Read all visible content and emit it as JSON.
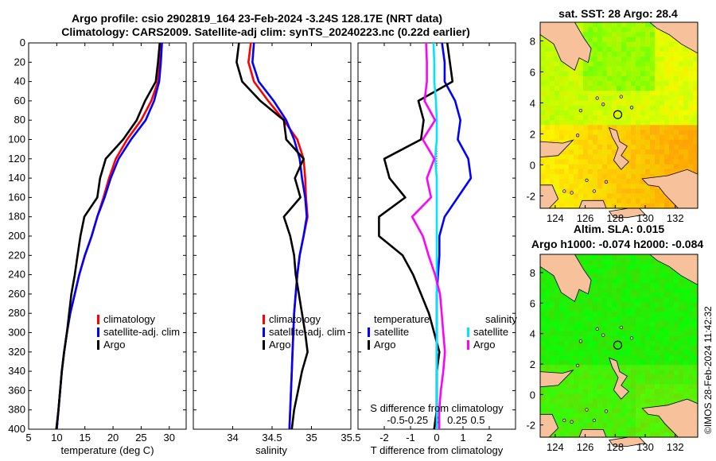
{
  "title": {
    "line1": "Argo profile: csio 2902819_164 23-Feb-2024 -3.24S 128.17E (NRT data)",
    "line2": "Climatology: CARS2009. Satellite-adj clim: synTS_20240223.nc (0.22d earlier)"
  },
  "colors": {
    "clim": "#ff0000",
    "sat": "#0000ff",
    "argo": "#000000",
    "cyan": "#00e5ff",
    "magenta": "#ff00ff"
  },
  "depth_ticks": [
    "0",
    "20",
    "40",
    "60",
    "80",
    "100",
    "120",
    "140",
    "160",
    "180",
    "200",
    "220",
    "240",
    "260",
    "280",
    "300",
    "320",
    "340",
    "360",
    "380",
    "400"
  ],
  "chart_data": [
    {
      "type": "line",
      "id": "temperature",
      "xlabel": "temperature (deg C)",
      "xlim": [
        5,
        33
      ],
      "ylim": [
        0,
        400
      ],
      "xticks": [
        5,
        10,
        15,
        20,
        25,
        30
      ],
      "xtick_labels": [
        "5",
        "10",
        "15",
        "20",
        "25",
        "30"
      ],
      "legend": [
        "climatology",
        "satellite-adj. clim",
        "Argo"
      ],
      "series": [
        {
          "name": "climatology",
          "color": "#ff0000",
          "points": [
            [
              28.5,
              0
            ],
            [
              28.3,
              20
            ],
            [
              28,
              40
            ],
            [
              26.8,
              60
            ],
            [
              25,
              80
            ],
            [
              22.5,
              100
            ],
            [
              20.5,
              120
            ],
            [
              19.3,
              140
            ],
            [
              18.3,
              160
            ],
            [
              17.2,
              180
            ],
            [
              16.2,
              200
            ],
            [
              15,
              220
            ],
            [
              14,
              240
            ],
            [
              13.2,
              260
            ],
            [
              12.4,
              280
            ],
            [
              11.8,
              300
            ],
            [
              11.3,
              320
            ],
            [
              10.9,
              340
            ],
            [
              10.6,
              360
            ],
            [
              10.3,
              380
            ],
            [
              10,
              400
            ]
          ]
        },
        {
          "name": "satellite-adj. clim",
          "color": "#0000ff",
          "points": [
            [
              28.7,
              0
            ],
            [
              28.5,
              20
            ],
            [
              28.2,
              40
            ],
            [
              27.3,
              60
            ],
            [
              25.8,
              80
            ],
            [
              23.2,
              100
            ],
            [
              21,
              120
            ],
            [
              19.6,
              140
            ],
            [
              18.5,
              160
            ],
            [
              17.2,
              180
            ],
            [
              16.2,
              200
            ],
            [
              15,
              220
            ],
            [
              14,
              240
            ],
            [
              13.2,
              260
            ],
            [
              12.4,
              280
            ],
            [
              11.8,
              300
            ],
            [
              11.3,
              320
            ],
            [
              10.9,
              340
            ],
            [
              10.6,
              360
            ],
            [
              10.3,
              380
            ],
            [
              10,
              400
            ]
          ]
        },
        {
          "name": "Argo",
          "color": "#000000",
          "points": [
            [
              28.3,
              0
            ],
            [
              28,
              20
            ],
            [
              27.6,
              40
            ],
            [
              25.7,
              60
            ],
            [
              24.2,
              80
            ],
            [
              21.8,
              100
            ],
            [
              18.7,
              120
            ],
            [
              17.7,
              140
            ],
            [
              17.2,
              160
            ],
            [
              14.9,
              180
            ],
            [
              14.2,
              200
            ],
            [
              13.7,
              220
            ],
            [
              13.2,
              240
            ],
            [
              12.6,
              260
            ],
            [
              12.2,
              280
            ],
            [
              11.8,
              300
            ],
            [
              11.3,
              320
            ],
            [
              10.9,
              340
            ],
            [
              10.6,
              360
            ],
            [
              10.3,
              380
            ],
            [
              9.9,
              400
            ]
          ]
        }
      ]
    },
    {
      "type": "line",
      "id": "salinity",
      "xlabel": "salinity",
      "xlim": [
        33.5,
        35.5
      ],
      "ylim": [
        0,
        400
      ],
      "xticks": [
        34,
        34.5,
        35,
        35.5
      ],
      "xtick_labels": [
        "34",
        "34.5",
        "35",
        "35.5"
      ],
      "legend": [
        "climatology",
        "satellite-adj. clim",
        "Argo"
      ],
      "series": [
        {
          "name": "climatology",
          "color": "#ff0000",
          "points": [
            [
              34.23,
              0
            ],
            [
              34.2,
              20
            ],
            [
              34.27,
              40
            ],
            [
              34.45,
              60
            ],
            [
              34.65,
              80
            ],
            [
              34.82,
              100
            ],
            [
              34.9,
              120
            ],
            [
              34.92,
              140
            ],
            [
              34.93,
              160
            ],
            [
              34.95,
              180
            ],
            [
              34.9,
              200
            ],
            [
              34.85,
              220
            ],
            [
              34.82,
              240
            ],
            [
              34.8,
              260
            ],
            [
              34.78,
              280
            ],
            [
              34.77,
              300
            ],
            [
              34.76,
              320
            ],
            [
              34.75,
              340
            ],
            [
              34.74,
              360
            ],
            [
              34.73,
              380
            ],
            [
              34.72,
              400
            ]
          ]
        },
        {
          "name": "satellite-adj. clim",
          "color": "#0000ff",
          "points": [
            [
              34.27,
              0
            ],
            [
              34.25,
              20
            ],
            [
              34.33,
              40
            ],
            [
              34.52,
              60
            ],
            [
              34.68,
              80
            ],
            [
              34.78,
              100
            ],
            [
              34.85,
              120
            ],
            [
              34.88,
              140
            ],
            [
              34.92,
              160
            ],
            [
              34.94,
              180
            ],
            [
              34.9,
              200
            ],
            [
              34.85,
              220
            ],
            [
              34.82,
              240
            ],
            [
              34.8,
              260
            ],
            [
              34.78,
              280
            ],
            [
              34.77,
              300
            ],
            [
              34.76,
              320
            ],
            [
              34.75,
              340
            ],
            [
              34.74,
              360
            ],
            [
              34.73,
              380
            ],
            [
              34.72,
              400
            ]
          ]
        },
        {
          "name": "Argo",
          "color": "#000000",
          "points": [
            [
              34.08,
              0
            ],
            [
              34.05,
              20
            ],
            [
              34.12,
              40
            ],
            [
              34.35,
              60
            ],
            [
              34.65,
              80
            ],
            [
              34.68,
              100
            ],
            [
              34.9,
              120
            ],
            [
              34.79,
              140
            ],
            [
              34.86,
              160
            ],
            [
              34.65,
              180
            ],
            [
              34.73,
              200
            ],
            [
              34.78,
              220
            ],
            [
              34.8,
              240
            ],
            [
              34.84,
              260
            ],
            [
              34.88,
              280
            ],
            [
              34.92,
              300
            ],
            [
              34.95,
              320
            ],
            [
              34.88,
              340
            ],
            [
              34.83,
              360
            ],
            [
              34.78,
              380
            ],
            [
              34.75,
              400
            ]
          ]
        }
      ]
    },
    {
      "type": "line",
      "id": "difference",
      "xlabel": "T difference from climatology",
      "xlabel_top": "S difference from climatology",
      "xlim": [
        -3,
        3
      ],
      "ylim": [
        0,
        400
      ],
      "xticks": [
        -2,
        -1,
        0,
        1,
        2
      ],
      "xtick_labels": [
        "-2",
        "-1",
        "0",
        "1",
        "2"
      ],
      "s_ticks": [
        -0.5,
        -0.25,
        0,
        0.25,
        0.5
      ],
      "s_tick_labels": [
        "-0.5",
        "-0.25",
        "0",
        "0.25",
        "0.5"
      ],
      "legend_left_title": "temperature",
      "legend_right_title": "salinity",
      "legend_left": [
        "satellite",
        "Argo"
      ],
      "legend_right": [
        "satellite",
        "Argo"
      ],
      "series": [
        {
          "name": "temperature satellite",
          "color": "#0000ff",
          "points": [
            [
              0.2,
              0
            ],
            [
              0.3,
              20
            ],
            [
              0.3,
              40
            ],
            [
              0.7,
              60
            ],
            [
              0.9,
              80
            ],
            [
              0.8,
              100
            ],
            [
              1.2,
              120
            ],
            [
              1.3,
              140
            ],
            [
              0.8,
              160
            ],
            [
              0.3,
              180
            ],
            [
              0.1,
              200
            ],
            [
              0.1,
              220
            ],
            [
              0.05,
              240
            ],
            [
              0,
              260
            ],
            [
              0,
              280
            ],
            [
              0,
              300
            ],
            [
              0,
              320
            ],
            [
              0,
              340
            ],
            [
              0,
              360
            ],
            [
              0,
              380
            ],
            [
              0,
              400
            ]
          ]
        },
        {
          "name": "temperature Argo",
          "color": "#000000",
          "points": [
            [
              0.4,
              0
            ],
            [
              0.5,
              20
            ],
            [
              0.6,
              40
            ],
            [
              -0.7,
              60
            ],
            [
              -0.5,
              80
            ],
            [
              -0.6,
              100
            ],
            [
              -2,
              120
            ],
            [
              -1.8,
              140
            ],
            [
              -1.2,
              160
            ],
            [
              -2.2,
              180
            ],
            [
              -2.2,
              200
            ],
            [
              -1.3,
              220
            ],
            [
              -0.9,
              240
            ],
            [
              -0.6,
              260
            ],
            [
              -0.3,
              280
            ],
            [
              -0.1,
              300
            ],
            [
              0.1,
              320
            ],
            [
              0,
              340
            ],
            [
              0,
              360
            ],
            [
              0,
              380
            ],
            [
              -0.1,
              400
            ]
          ]
        },
        {
          "name": "salinity satellite",
          "color": "#00e5ff",
          "points": [
            [
              -0.04,
              0
            ],
            [
              -0.03,
              20
            ],
            [
              -0.03,
              40
            ],
            [
              -0.01,
              60
            ],
            [
              0,
              80
            ],
            [
              0,
              100
            ],
            [
              -0.02,
              120
            ],
            [
              0,
              140
            ],
            [
              0,
              160
            ],
            [
              0,
              180
            ],
            [
              0,
              200
            ],
            [
              0,
              220
            ],
            [
              0,
              240
            ],
            [
              0,
              260
            ],
            [
              0,
              280
            ],
            [
              0,
              300
            ],
            [
              0,
              320
            ],
            [
              0,
              340
            ],
            [
              0,
              360
            ],
            [
              0,
              380
            ],
            [
              0,
              400
            ]
          ]
        },
        {
          "name": "salinity Argo",
          "color": "#ff00ff",
          "points": [
            [
              -0.13,
              0
            ],
            [
              -0.12,
              20
            ],
            [
              -0.12,
              40
            ],
            [
              -0.15,
              60
            ],
            [
              -0.02,
              80
            ],
            [
              -0.17,
              100
            ],
            [
              -0.03,
              120
            ],
            [
              -0.12,
              140
            ],
            [
              -0.07,
              160
            ],
            [
              -0.3,
              180
            ],
            [
              -0.17,
              200
            ],
            [
              -0.1,
              220
            ],
            [
              -0.02,
              240
            ],
            [
              0.04,
              260
            ],
            [
              0.06,
              280
            ],
            [
              0.08,
              300
            ],
            [
              0.1,
              320
            ],
            [
              0.08,
              340
            ],
            [
              0.05,
              360
            ],
            [
              0.03,
              380
            ],
            [
              0.03,
              400
            ]
          ]
        }
      ]
    }
  ],
  "maps": {
    "sst": {
      "title": "sat. SST: 28 Argo: 28.4",
      "xticks": [
        "124",
        "126",
        "128",
        "130",
        "132"
      ],
      "yticks": [
        "8",
        "6",
        "4",
        "2",
        "0",
        "-2"
      ]
    },
    "sla": {
      "title_line1": "Altim. SLA: 0.015",
      "title_line2": "Argo h1000: -0.074 h2000: -0.084",
      "xticks": [
        "124",
        "126",
        "128",
        "130",
        "132"
      ],
      "yticks": [
        "8",
        "6",
        "4",
        "2",
        "0",
        "-2"
      ]
    }
  },
  "credit": "©IMOS 28-Feb-2024 11:42:32"
}
